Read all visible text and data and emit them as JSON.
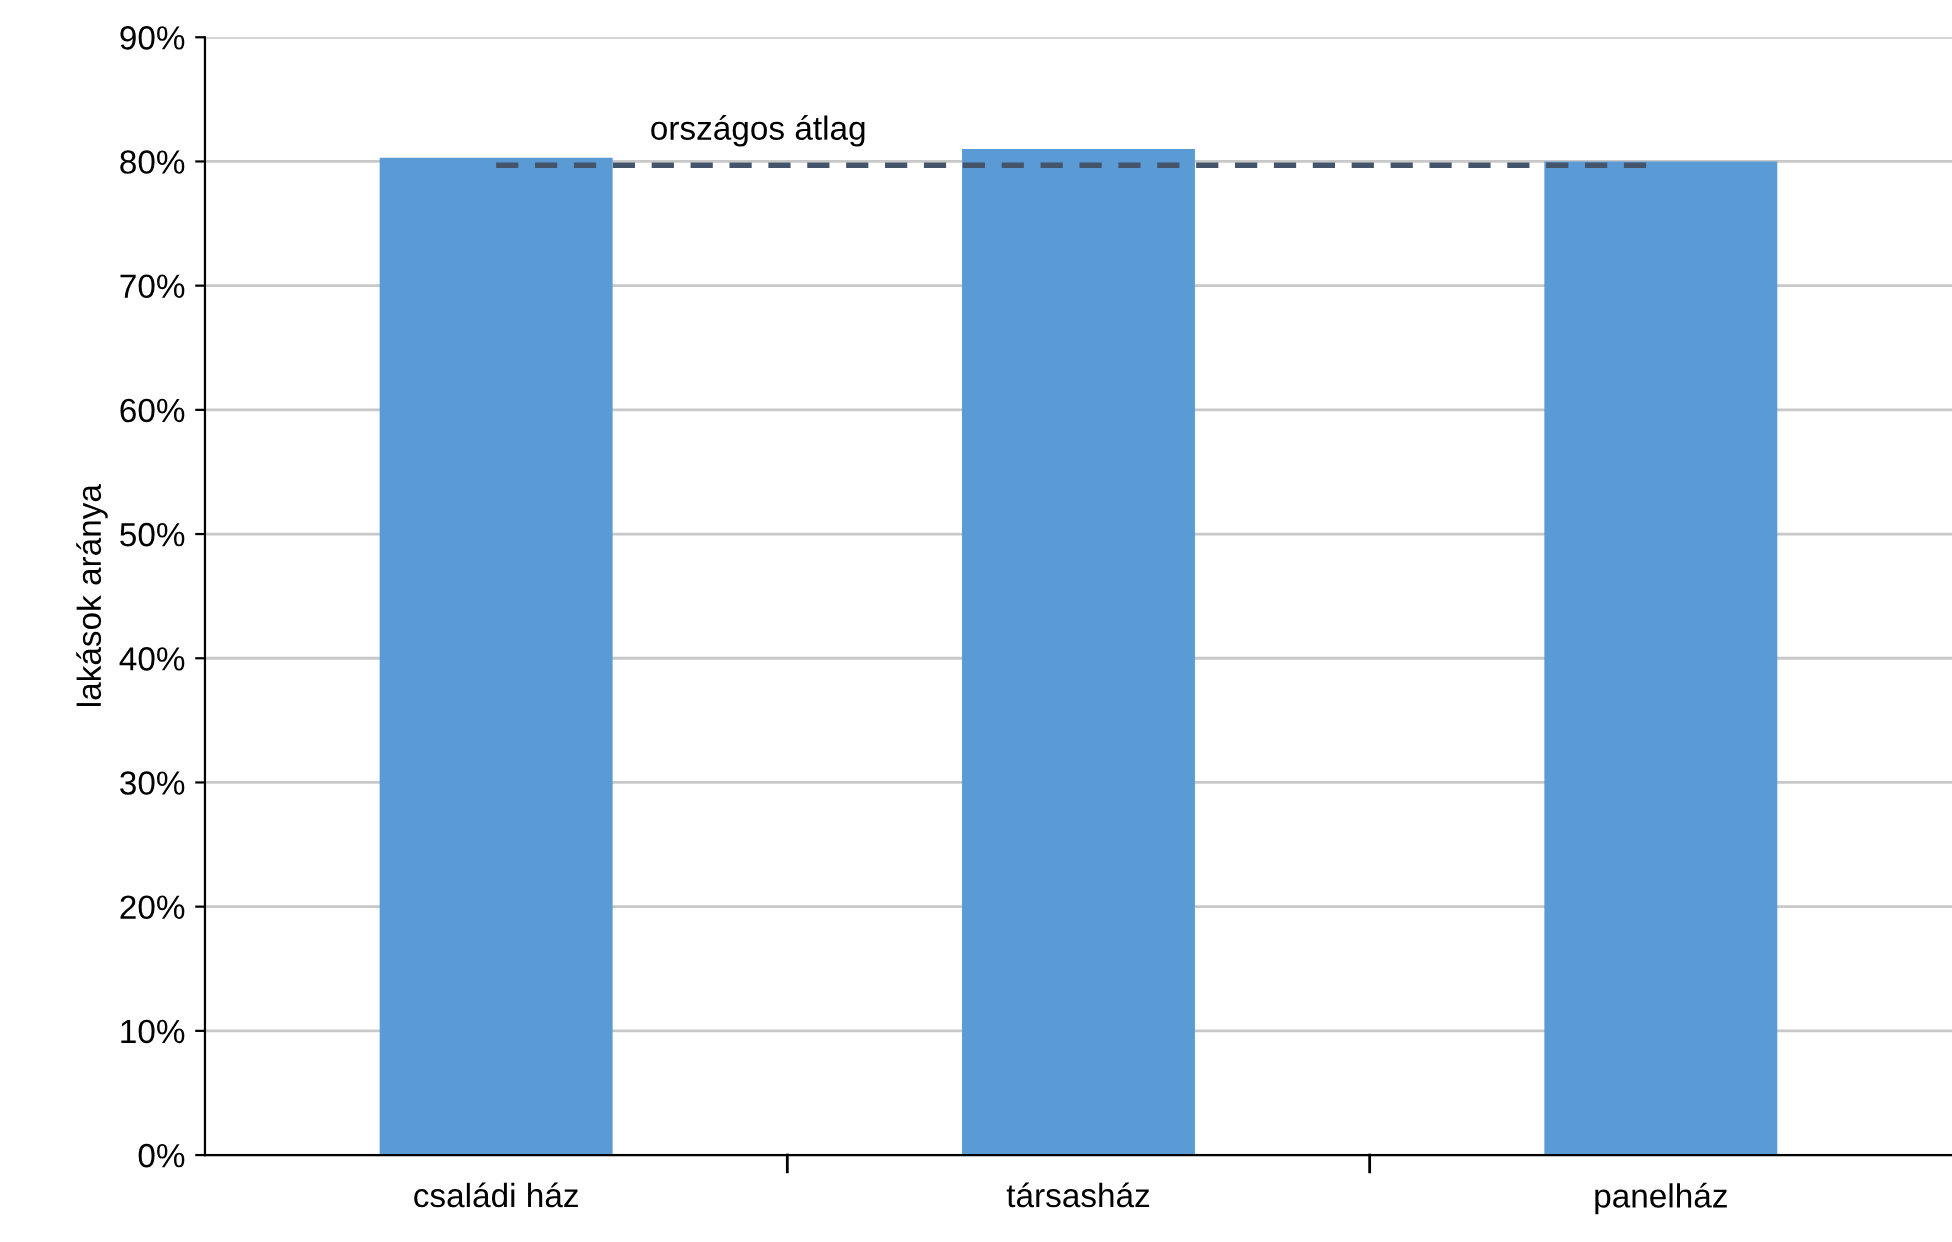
{
  "chart_data": {
    "type": "bar",
    "ylabel": "lakások aránya",
    "categories": [
      "családi ház",
      "társasház",
      "panelház"
    ],
    "values": [
      80.3,
      81,
      80
    ],
    "color": "#5b9bd5",
    "ylim": [
      0,
      90
    ],
    "yticks": [
      {
        "value": 0,
        "label": "0%"
      },
      {
        "value": 10,
        "label": "10%"
      },
      {
        "value": 20,
        "label": "20%"
      },
      {
        "value": 30,
        "label": "30%"
      },
      {
        "value": 40,
        "label": "40%"
      },
      {
        "value": 50,
        "label": "50%"
      },
      {
        "value": 60,
        "label": "60%"
      },
      {
        "value": 70,
        "label": "70%"
      },
      {
        "value": 80,
        "label": "80%"
      },
      {
        "value": 90,
        "label": "90%"
      }
    ],
    "grid": "y",
    "ref_lines": [
      {
        "axis": "y",
        "value": 79.7,
        "label": "országos átlag",
        "color": "#44546a",
        "line_style": "dashed"
      }
    ]
  }
}
